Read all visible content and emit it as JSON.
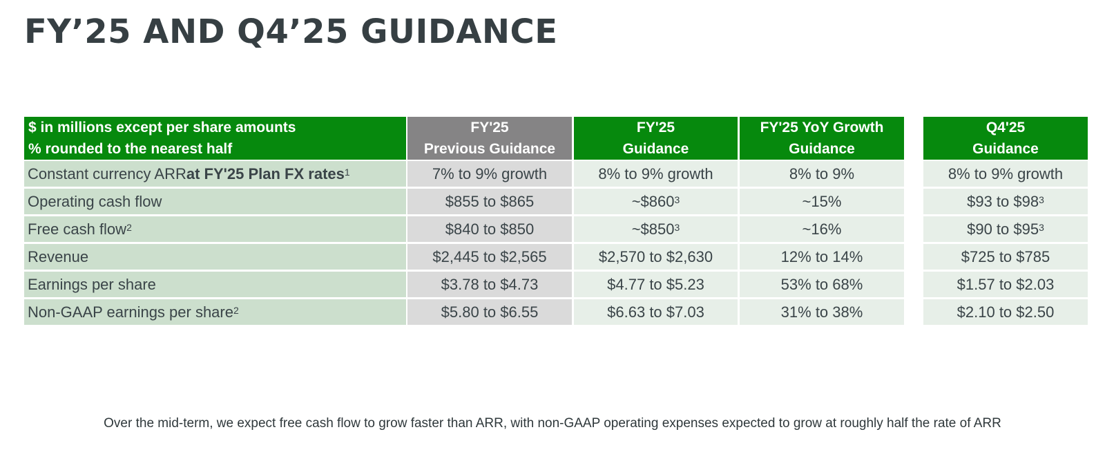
{
  "title": "FY’25 AND Q4’25 GUIDANCE",
  "table": {
    "header": {
      "label_line1": "$ in millions except per share amounts",
      "label_line2": "% rounded to the nearest half",
      "prev_line1": "FY'25",
      "prev_line2": "Previous Guidance",
      "fy_line1": "FY'25",
      "fy_line2": "Guidance",
      "yoy_line1": "FY'25 YoY Growth",
      "yoy_line2": "Guidance",
      "q4_line1": "Q4'25",
      "q4_line2": "Guidance"
    },
    "rows": [
      {
        "label": "Constant currency ARR ",
        "label_bold": "at FY'25 Plan FX rates",
        "label_sup": "1",
        "prev": "7% to 9% growth",
        "fy": "8% to 9% growth",
        "fy_sup": "",
        "yoy": "8% to 9%",
        "q4": "8% to 9% growth",
        "q4_sup": ""
      },
      {
        "label": "Operating cash flow",
        "label_sup": "",
        "prev": "$855 to $865",
        "fy": "~$860",
        "fy_sup": "3",
        "yoy": "~15%",
        "q4": "$93 to $98",
        "q4_sup": "3"
      },
      {
        "label": "Free cash flow",
        "label_sup": "2",
        "prev": "$840 to $850",
        "fy": "~$850",
        "fy_sup": "3",
        "yoy": "~16%",
        "q4": "$90 to $95",
        "q4_sup": "3"
      },
      {
        "label": "Revenue",
        "label_sup": "",
        "prev": "$2,445 to $2,565",
        "fy": "$2,570 to $2,630",
        "fy_sup": "",
        "yoy": "12% to 14%",
        "q4": "$725 to $785",
        "q4_sup": ""
      },
      {
        "label": "Earnings per share",
        "label_sup": "",
        "prev": "$3.78 to $4.73",
        "fy": "$4.77 to $5.23",
        "fy_sup": "",
        "yoy": "53% to 68%",
        "q4": "$1.57 to $2.03",
        "q4_sup": ""
      },
      {
        "label": "Non-GAAP earnings per share",
        "label_sup": "2",
        "prev": "$5.80 to $6.55",
        "fy": "$6.63 to $7.03",
        "fy_sup": "",
        "yoy": "31% to 38%",
        "q4": "$2.10 to $2.50",
        "q4_sup": ""
      }
    ]
  },
  "footer": "Over the mid-term, we expect free cash flow to grow faster than ARR, with non-GAAP operating expenses expected to grow at roughly half the rate of ARR"
}
